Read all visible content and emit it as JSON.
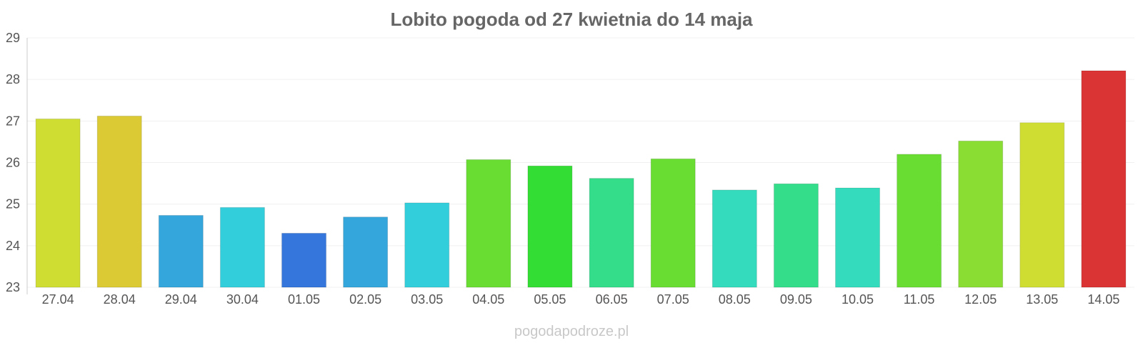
{
  "chart_data": {
    "type": "bar",
    "title": "Lobito pogoda od 27 kwietnia do 14 maja",
    "xlabel": "",
    "ylabel": "",
    "ylim": [
      23,
      29
    ],
    "yticks": [
      "23",
      "24",
      "25",
      "26",
      "27",
      "28",
      "29"
    ],
    "grid": true,
    "categories": [
      "27.04",
      "28.04",
      "29.04",
      "30.04",
      "01.05",
      "02.05",
      "03.05",
      "04.05",
      "05.05",
      "06.05",
      "07.05",
      "08.05",
      "09.05",
      "10.05",
      "11.05",
      "12.05",
      "13.05",
      "14.05"
    ],
    "values": [
      27.05,
      27.12,
      24.73,
      24.92,
      24.3,
      24.69,
      25.03,
      26.07,
      25.92,
      25.62,
      26.09,
      25.34,
      25.49,
      25.39,
      26.2,
      26.52,
      26.96,
      28.21
    ],
    "colors": [
      "#cfdd33",
      "#dbca33",
      "#34a6db",
      "#33cedb",
      "#3476db",
      "#34a6db",
      "#33cedb",
      "#6add33",
      "#33dd33",
      "#34dd8a",
      "#6add33",
      "#34dbbc",
      "#34dd8a",
      "#34dbbc",
      "#6add33",
      "#8add33",
      "#cfdd33",
      "#db3434"
    ]
  },
  "watermark": "pogodapodroze.pl"
}
